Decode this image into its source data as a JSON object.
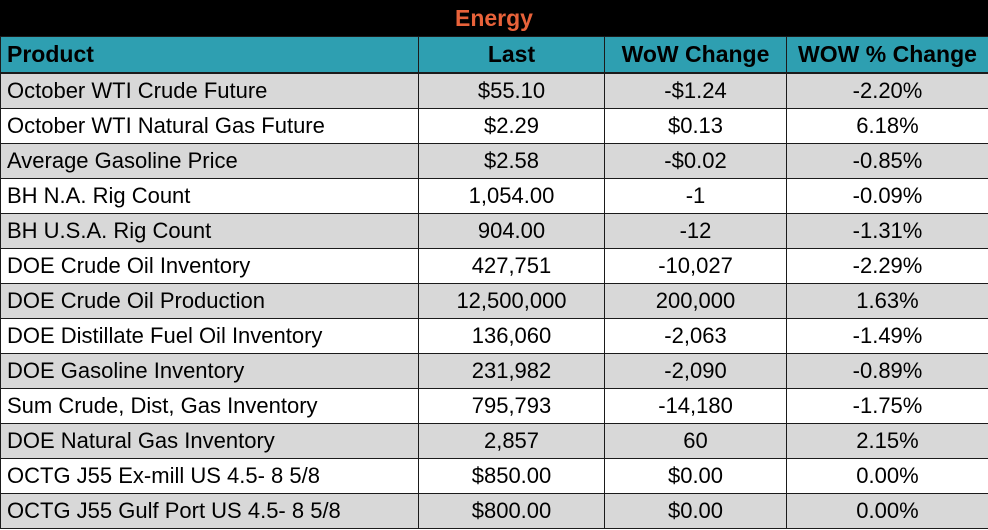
{
  "title": "Energy",
  "columns": {
    "product": "Product",
    "last": "Last",
    "wow_change": "WoW Change",
    "wow_pct_change": "WOW % Change"
  },
  "rows": [
    {
      "product": "October WTI Crude Future",
      "last": "$55.10",
      "wow_change": "-$1.24",
      "wow_pct_change": "-2.20%"
    },
    {
      "product": "October WTI Natural Gas Future",
      "last": "$2.29",
      "wow_change": "$0.13",
      "wow_pct_change": "6.18%"
    },
    {
      "product": "Average Gasoline Price",
      "last": "$2.58",
      "wow_change": "-$0.02",
      "wow_pct_change": "-0.85%"
    },
    {
      "product": "BH N.A. Rig Count",
      "last": "1,054.00",
      "wow_change": "-1",
      "wow_pct_change": "-0.09%"
    },
    {
      "product": "BH U.S.A. Rig Count",
      "last": "904.00",
      "wow_change": "-12",
      "wow_pct_change": "-1.31%"
    },
    {
      "product": "DOE Crude Oil Inventory",
      "last": "427,751",
      "wow_change": "-10,027",
      "wow_pct_change": "-2.29%"
    },
    {
      "product": "DOE Crude Oil Production",
      "last": "12,500,000",
      "wow_change": "200,000",
      "wow_pct_change": "1.63%"
    },
    {
      "product": "DOE Distillate Fuel Oil Inventory",
      "last": "136,060",
      "wow_change": "-2,063",
      "wow_pct_change": "-1.49%"
    },
    {
      "product": "DOE Gasoline Inventory",
      "last": "231,982",
      "wow_change": "-2,090",
      "wow_pct_change": "-0.89%"
    },
    {
      "product": "Sum Crude, Dist, Gas Inventory",
      "last": "795,793",
      "wow_change": "-14,180",
      "wow_pct_change": "-1.75%"
    },
    {
      "product": "DOE Natural Gas Inventory",
      "last": "2,857",
      "wow_change": "60",
      "wow_pct_change": "2.15%"
    },
    {
      "product": "OCTG J55 Ex-mill US 4.5- 8 5/8",
      "last": "$850.00",
      "wow_change": "$0.00",
      "wow_pct_change": "0.00%"
    },
    {
      "product": "OCTG J55 Gulf Port US 4.5- 8 5/8",
      "last": "$800.00",
      "wow_change": "$0.00",
      "wow_pct_change": "0.00%"
    }
  ],
  "colors": {
    "title_background": "#000000",
    "title_text": "#e8623a",
    "header_background": "#2e9fb1",
    "row_shaded": "#d8d8d8",
    "row_plain": "#ffffff"
  }
}
